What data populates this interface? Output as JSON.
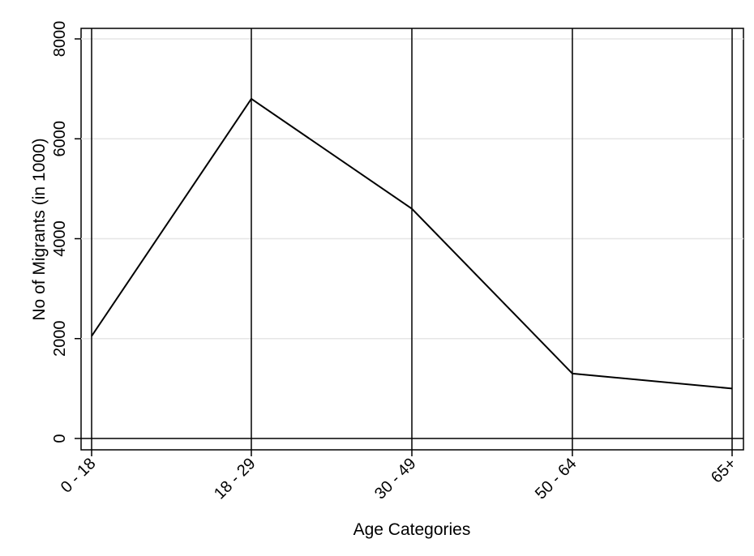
{
  "chart_data": {
    "type": "line",
    "categories": [
      "0 - 18",
      "18 - 29",
      "30 - 49",
      "50 - 64",
      "65+"
    ],
    "values": [
      2050,
      6800,
      4600,
      1300,
      1000
    ],
    "title": "",
    "xlabel": "Age Categories",
    "ylabel": "No of Migrants (in 1000)",
    "ylim": [
      0,
      8000
    ],
    "yticks": [
      "0",
      "2000",
      "4000",
      "6000",
      "8000"
    ],
    "grid": true,
    "vertical_lines_at_categories": true,
    "colors": {
      "line": "#000000",
      "grid": "#e6e6e6",
      "axis": "#000000",
      "background": "#ffffff"
    }
  }
}
